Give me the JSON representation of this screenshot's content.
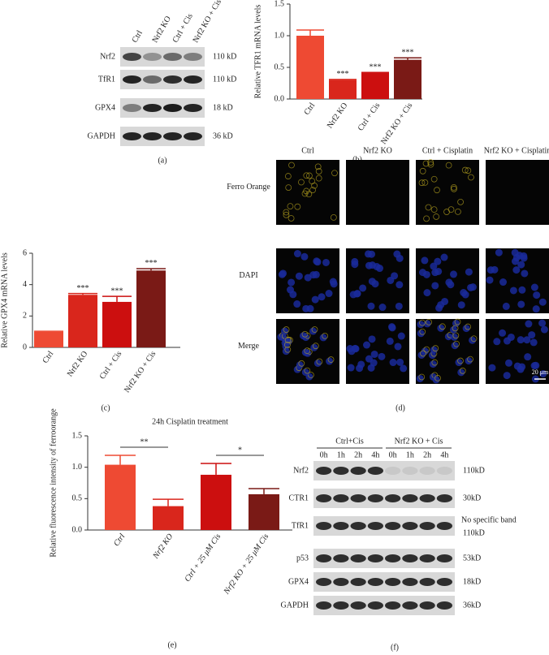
{
  "chart_data": [
    {
      "type": "bar",
      "y_label": "Relative TFR1 mRNA levels",
      "categories": [
        "Ctrl",
        "Nrf2 KO",
        "Ctrl + Cis",
        "Nrf2 KO + Cis"
      ],
      "values": [
        1.0,
        0.3,
        0.41,
        0.62
      ],
      "errors": [
        0.09,
        0.01,
        0.01,
        0.03
      ],
      "colors": [
        "#ee4a33",
        "#d9261c",
        "#cc0f0f",
        "#7a1a16"
      ],
      "annotations": [
        null,
        "***",
        "***",
        "***"
      ],
      "ylim": [
        0,
        1.5
      ],
      "yticks": [
        {
          "value": 0,
          "label": "0.0"
        },
        {
          "value": 0.5,
          "label": "0.5"
        },
        {
          "value": 1,
          "label": "1.0"
        },
        {
          "value": 1.5,
          "label": "1.5"
        }
      ],
      "caption": "(b)"
    },
    {
      "type": "bar",
      "y_label": "Relative GPX4 mRNA levels",
      "categories": [
        "Ctrl",
        "Nrf2 KO",
        "Ctrl + Cis",
        "Nrf2 KO + Cis"
      ],
      "values": [
        1.0,
        3.35,
        2.9,
        4.9
      ],
      "errors": [
        0.03,
        0.08,
        0.35,
        0.12
      ],
      "colors": [
        "#ee4a33",
        "#d9261c",
        "#cc0f0f",
        "#7a1a16"
      ],
      "annotations": [
        null,
        "***",
        "***",
        "***"
      ],
      "ylim": [
        0,
        6
      ],
      "yticks": [
        0,
        2,
        4,
        6
      ],
      "caption": "(c)"
    },
    {
      "type": "bar",
      "title": "24h Cisplatin treatment",
      "y_label": "Relative fluorescence intensity of ferroorange",
      "categories": [
        "Ctrl",
        "Nrf2 KO",
        "Ctrl + 25 μM Cis",
        "Nrf2 KO + 25 μM Cis"
      ],
      "values": [
        1.04,
        0.38,
        0.88,
        0.57
      ],
      "errors": [
        0.15,
        0.11,
        0.18,
        0.09
      ],
      "colors": [
        "#ee4a33",
        "#d9261c",
        "#cc0f0f",
        "#7a1a16"
      ],
      "brackets": [
        {
          "from": "Ctrl",
          "to": "Nrf2 KO",
          "text": "**"
        },
        {
          "from": "Ctrl + 25 μM Cis",
          "to": "Nrf2 KO + 25 μM Cis",
          "text": "*"
        }
      ],
      "ylim": [
        0,
        1.5
      ],
      "yticks": [
        {
          "value": 0,
          "label": "0.0"
        },
        {
          "value": 0.5,
          "label": "0.5"
        },
        {
          "value": 1,
          "label": "1.0"
        },
        {
          "value": 1.5,
          "label": "1.5"
        }
      ],
      "caption": "(e)"
    }
  ],
  "blot_a": {
    "lanes": [
      "Ctrl",
      "Nrf2 KO",
      "Ctrl + Cis",
      "Nrf2 KO + Cis"
    ],
    "rows": [
      {
        "protein": "Nrf2",
        "size": "110 kD"
      },
      {
        "protein": "TfR1",
        "size": "110 kD"
      },
      {
        "protein": "GPX4",
        "size": "18 kD"
      },
      {
        "protein": "GAPDH",
        "size": "36 kD"
      }
    ],
    "caption": "(a)"
  },
  "microscopy": {
    "columns": [
      "Ctrl",
      "Nrf2 KO",
      "Ctrl + Cisplatin",
      "Nrf2 KO + Cisplatin"
    ],
    "rows": [
      "Ferro Orange",
      "DAPI",
      "Merge"
    ],
    "scale_bar": "20 μm",
    "caption": "(d)"
  },
  "blot_f": {
    "groups": [
      "Ctrl+Cis",
      "Nrf2 KO + Cis"
    ],
    "times": [
      "0h",
      "1h",
      "2h",
      "4h",
      "0h",
      "1h",
      "2h",
      "4h"
    ],
    "rows": [
      {
        "protein": "Nrf2",
        "size": "110kD"
      },
      {
        "protein": "CTR1",
        "size": "30kD"
      },
      {
        "protein": "TfR1",
        "size": "110kD"
      },
      {
        "protein": "p53",
        "size": "53kD"
      },
      {
        "protein": "GPX4",
        "size": "18kD"
      },
      {
        "protein": "GAPDH",
        "size": "36kD"
      }
    ],
    "note": "No specific band",
    "caption": "(f)"
  }
}
